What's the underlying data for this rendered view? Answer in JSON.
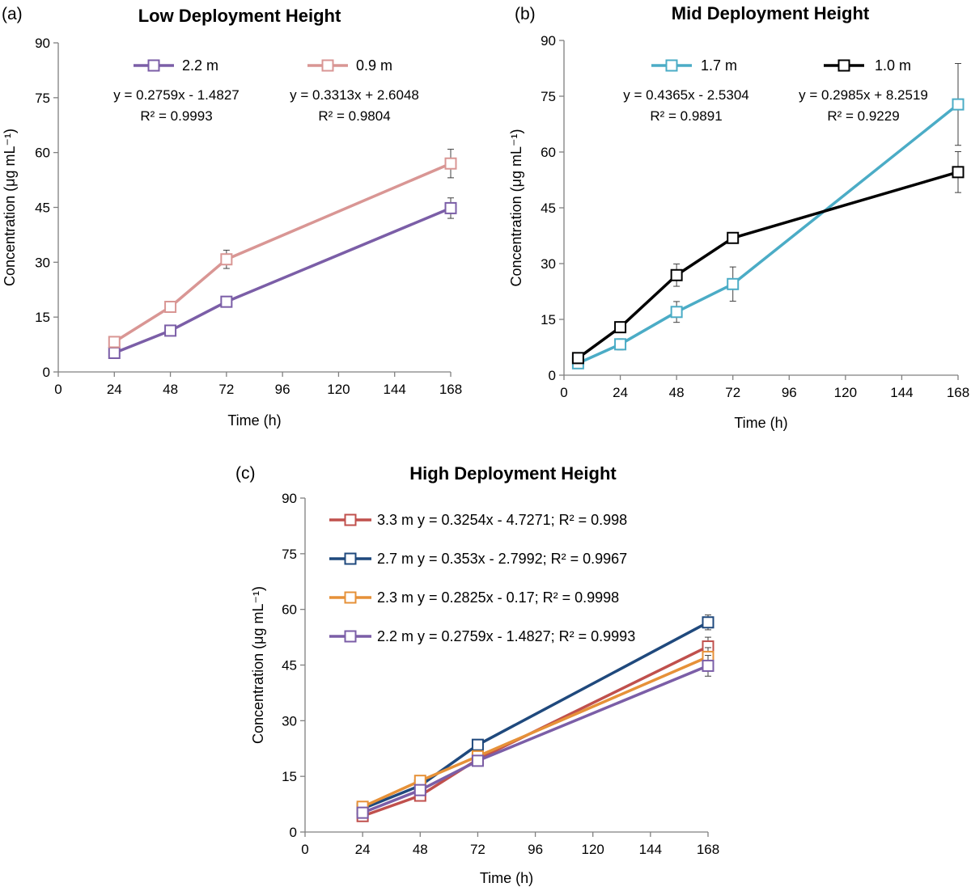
{
  "chart_data": [
    {
      "panel": "(a)",
      "type": "line",
      "title": "Low Deployment Height",
      "xlabel": "Time (h)",
      "ylabel": "Concentration (μg mL⁻¹)",
      "xlim": [
        0,
        168
      ],
      "ylim": [
        0,
        90
      ],
      "xticks": [
        0,
        24,
        48,
        72,
        96,
        120,
        144,
        168
      ],
      "yticks": [
        0,
        15,
        30,
        45,
        60,
        75,
        90
      ],
      "grid": false,
      "series": [
        {
          "name": "2.2 m",
          "color": "#7b5ea7",
          "equation": "y = 0.2759x - 1.4827",
          "r2": "R² = 0.9993",
          "x": [
            24,
            48,
            72,
            168
          ],
          "y": [
            5.2,
            11.3,
            19.2,
            44.8
          ],
          "err": [
            1.0,
            1.2,
            1.0,
            2.8
          ]
        },
        {
          "name": "0.9 m",
          "color": "#d99694",
          "equation": "y = 0.3313x + 2.6048",
          "r2": "R² = 0.9804",
          "x": [
            24,
            48,
            72,
            168
          ],
          "y": [
            8.2,
            17.8,
            30.8,
            57.0
          ],
          "err": [
            1.5,
            1.2,
            2.5,
            3.9
          ]
        }
      ]
    },
    {
      "panel": "(b)",
      "type": "line",
      "title": "Mid Deployment Height",
      "xlabel": "Time (h)",
      "ylabel": "Concentration (μg mL⁻¹)",
      "xlim": [
        0,
        168
      ],
      "ylim": [
        0,
        90
      ],
      "xticks": [
        0,
        24,
        48,
        72,
        96,
        120,
        144,
        168
      ],
      "yticks": [
        0,
        15,
        30,
        45,
        60,
        75,
        90
      ],
      "grid": false,
      "series": [
        {
          "name": "1.7 m",
          "color": "#4bacc6",
          "equation": "y = 0.4365x - 2.5304",
          "r2": "R² = 0.9891",
          "x": [
            6,
            24,
            48,
            72,
            168
          ],
          "y": [
            3.2,
            8.3,
            17.0,
            24.5,
            72.8
          ],
          "err": [
            0.8,
            1.5,
            2.8,
            4.6,
            11.0
          ]
        },
        {
          "name": "1.0 m",
          "color": "#000000",
          "equation": "y = 0.2985x + 8.2519",
          "r2": "R² = 0.9229",
          "x": [
            6,
            24,
            48,
            72,
            168
          ],
          "y": [
            4.6,
            12.9,
            26.9,
            36.9,
            54.6
          ],
          "err": [
            0.8,
            1.2,
            3.0,
            1.0,
            5.5
          ]
        }
      ]
    },
    {
      "panel": "(c)",
      "type": "line",
      "title": "High Deployment Height",
      "xlabel": "Time (h)",
      "ylabel": "Concentration (μg mL⁻¹)",
      "xlim": [
        0,
        168
      ],
      "ylim": [
        0,
        90
      ],
      "xticks": [
        0,
        24,
        48,
        72,
        96,
        120,
        144,
        168
      ],
      "yticks": [
        0,
        15,
        30,
        45,
        60,
        75,
        90
      ],
      "grid": false,
      "series": [
        {
          "name": "3.3 m",
          "color": "#c0504d",
          "legend": "3.3 m  y = 0.3254x - 4.7271; R² = 0.998",
          "x": [
            24,
            48,
            72,
            168
          ],
          "y": [
            4.3,
            9.8,
            19.6,
            50.0
          ],
          "err": [
            0.8,
            1.2,
            1.2,
            2.5
          ]
        },
        {
          "name": "2.7 m",
          "color": "#1f497d",
          "legend": "2.7 m  y = 0.353x - 2.7992; R² = 0.9967",
          "x": [
            24,
            48,
            72,
            168
          ],
          "y": [
            6.3,
            12.5,
            23.5,
            56.5
          ],
          "err": [
            0.8,
            1.2,
            1.2,
            2.0
          ]
        },
        {
          "name": "2.3 m",
          "color": "#e69138",
          "legend": "2.3 m  y = 0.2825x - 0.17; R² = 0.9998",
          "x": [
            24,
            48,
            72,
            168
          ],
          "y": [
            6.8,
            13.8,
            20.4,
            47.2
          ],
          "err": [
            0.8,
            1.2,
            1.2,
            2.5
          ]
        },
        {
          "name": "2.2 m",
          "color": "#7b5ea7",
          "legend": "2.2 m y = 0.2759x - 1.4827; R² = 0.9993",
          "x": [
            24,
            48,
            72,
            168
          ],
          "y": [
            5.2,
            11.3,
            19.2,
            44.8
          ],
          "err": [
            1.0,
            1.2,
            1.0,
            2.8
          ]
        }
      ]
    }
  ]
}
